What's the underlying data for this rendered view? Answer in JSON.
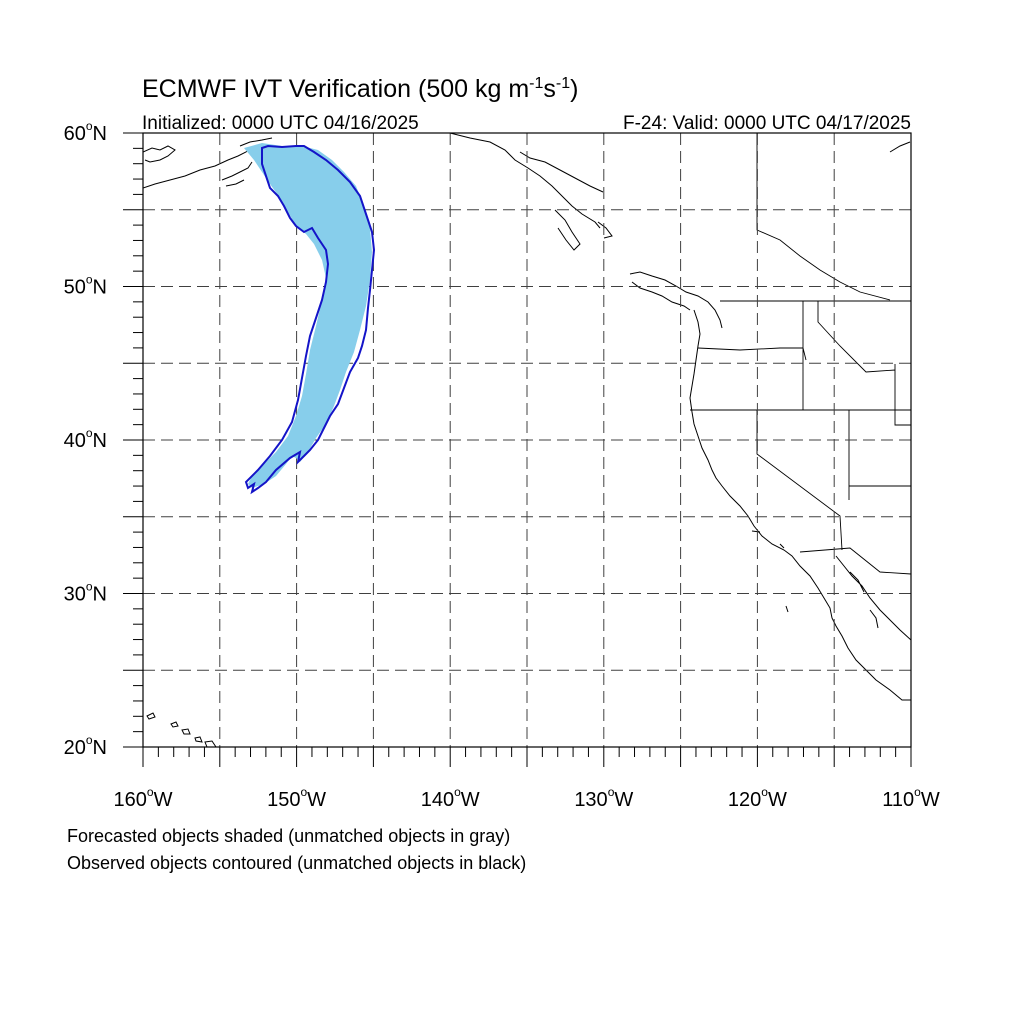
{
  "title": {
    "main": "ECMWF IVT Verification (500 kg m",
    "exp1": "-1",
    "mid": "s",
    "exp2": "-1",
    "close": ")"
  },
  "initialized": "Initialized: 0000 UTC 04/16/2025",
  "valid": "F-24: Valid: 0000 UTC 04/17/2025",
  "map": {
    "lon_range": [
      -160,
      -110
    ],
    "lat_range": [
      20,
      60
    ],
    "x_ticks": [
      {
        "lon": -160,
        "label": "160",
        "suffix": "W"
      },
      {
        "lon": -150,
        "label": "150",
        "suffix": "W"
      },
      {
        "lon": -140,
        "label": "140",
        "suffix": "W"
      },
      {
        "lon": -130,
        "label": "130",
        "suffix": "W"
      },
      {
        "lon": -120,
        "label": "120",
        "suffix": "W"
      },
      {
        "lon": -110,
        "label": "110",
        "suffix": "W"
      }
    ],
    "y_ticks": [
      {
        "lat": 60,
        "label": "60",
        "suffix": "N"
      },
      {
        "lat": 50,
        "label": "50",
        "suffix": "N"
      },
      {
        "lat": 40,
        "label": "40",
        "suffix": "N"
      },
      {
        "lat": 30,
        "label": "30",
        "suffix": "N"
      },
      {
        "lat": 20,
        "label": "20",
        "suffix": "N"
      }
    ],
    "gridline_spacing_deg": 5,
    "colors": {
      "forecast_fill": "#87ceeb",
      "observed_contour": "#1414c8",
      "coast": "#000000"
    }
  },
  "notes": {
    "line1": "Forecasted objects shaded (unmatched objects in gray)",
    "line2": "Observed objects contoured (unmatched objects in black)"
  }
}
